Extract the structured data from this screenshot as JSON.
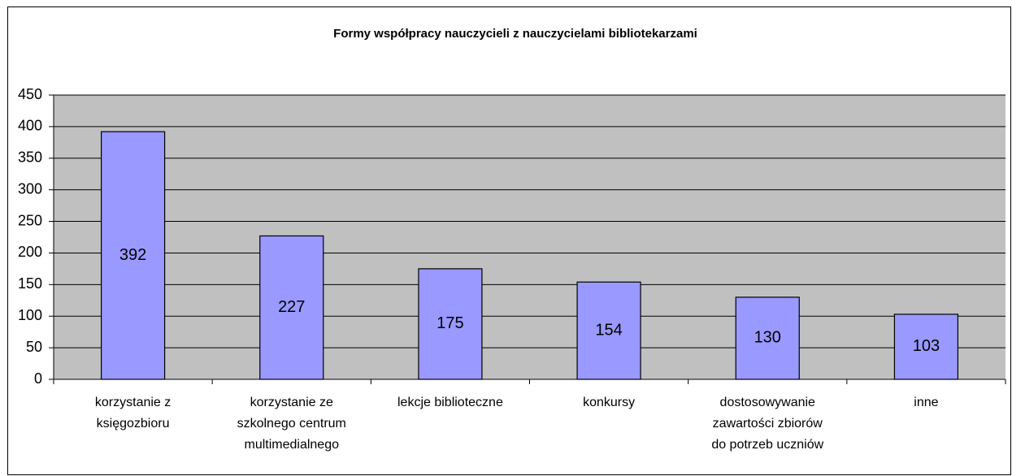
{
  "chart_data": {
    "type": "bar",
    "title": "Formy współpracy nauczycieli z nauczycielami bibliotekarzami",
    "categories": [
      "korzystanie z\nksięgozbioru",
      "korzystanie ze\nszkolnego centrum\nmultimedialnego",
      "lekcje biblioteczne",
      "konkursy",
      "dostosowywanie\nzawartości zbiorów\ndo potrzeb uczniów",
      "inne"
    ],
    "values": [
      392,
      227,
      175,
      154,
      130,
      103
    ],
    "color": "#9999ff",
    "ylim": [
      0,
      450
    ],
    "yticks": [
      0,
      50,
      100,
      150,
      200,
      250,
      300,
      350,
      400,
      450
    ],
    "grid": true
  }
}
